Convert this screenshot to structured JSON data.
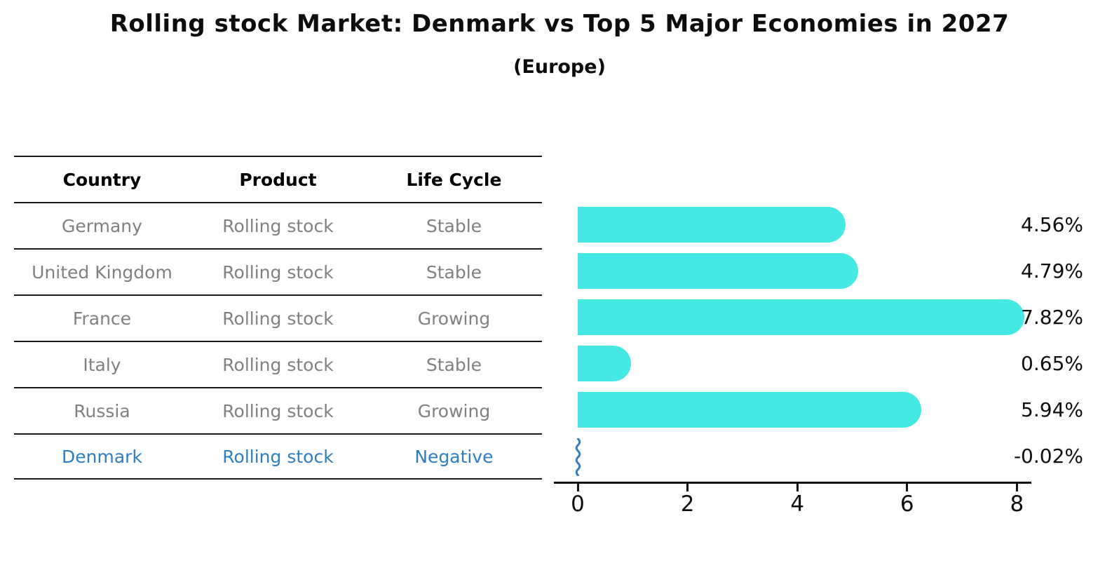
{
  "chart_data": {
    "type": "bar",
    "orientation": "horizontal",
    "title": "Rolling stock Market: Denmark vs Top 5 Major Economies in 2027",
    "subtitle": "(Europe)",
    "categories": [
      "Germany",
      "United Kingdom",
      "France",
      "Italy",
      "Russia",
      "Denmark"
    ],
    "values": [
      4.56,
      4.79,
      7.82,
      0.65,
      5.94,
      -0.02
    ],
    "value_labels": [
      "4.56%",
      "4.79%",
      "7.82%",
      "0.65%",
      "5.94%",
      "-0.02%"
    ],
    "xlabel": "",
    "ylabel": "",
    "xlim": [
      0,
      8.3
    ],
    "xticks": [
      "0",
      "2",
      "4",
      "6",
      "8"
    ],
    "grid": false,
    "legend": false,
    "bar_color": "#46E8E3",
    "highlight_color": "#2D7DC3",
    "axis_color": "#111111"
  },
  "table": {
    "headers": [
      "Country",
      "Product",
      "Life Cycle"
    ],
    "rows": [
      {
        "country": "Germany",
        "product": "Rolling stock",
        "life_cycle": "Stable",
        "highlight": false
      },
      {
        "country": "United Kingdom",
        "product": "Rolling stock",
        "life_cycle": "Stable",
        "highlight": false
      },
      {
        "country": "France",
        "product": "Rolling stock",
        "life_cycle": "Growing",
        "highlight": false
      },
      {
        "country": "Italy",
        "product": "Rolling stock",
        "life_cycle": "Stable",
        "highlight": false
      },
      {
        "country": "Russia",
        "product": "Rolling stock",
        "life_cycle": "Growing",
        "highlight": false
      },
      {
        "country": "Denmark",
        "product": "Rolling stock",
        "life_cycle": "Negative",
        "highlight": true
      }
    ]
  }
}
